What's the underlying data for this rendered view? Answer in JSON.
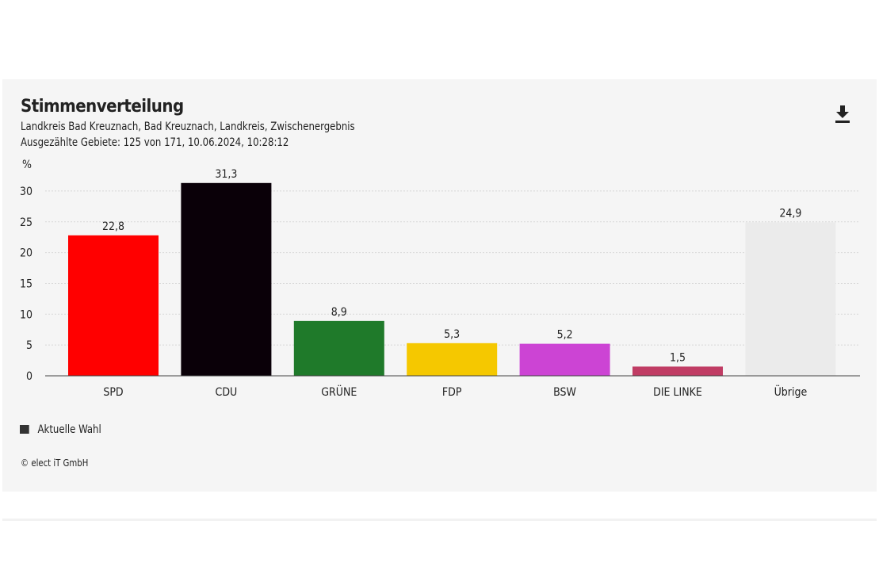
{
  "header": {
    "title": "Stimmenverteilung",
    "subtitle": "Landkreis Bad Kreuznach, Bad Kreuznach, Landkreis, Zwischenergebnis",
    "status": "Ausgezählte Gebiete: 125 von 171, 10.06.2024, 10:28:12",
    "download_icon": "download-icon"
  },
  "legend": {
    "label": "Aktuelle Wahl",
    "color": "#333333"
  },
  "footer": {
    "copyright": "© elect iT GmbH"
  },
  "chart_data": {
    "type": "bar",
    "title": "Stimmenverteilung",
    "ylabel": "%",
    "ylim": [
      0,
      30
    ],
    "yticks": [
      0,
      5,
      10,
      15,
      20,
      25,
      30
    ],
    "grid": true,
    "legend_position": "bottom-left",
    "categories": [
      "SPD",
      "CDU",
      "GRÜNE",
      "FDP",
      "BSW",
      "DIE LINKE",
      "Übrige"
    ],
    "values": [
      22.8,
      31.3,
      8.9,
      5.3,
      5.2,
      1.5,
      24.9
    ],
    "value_labels": [
      "22,8",
      "31,3",
      "8,9",
      "5,3",
      "5,2",
      "1,5",
      "24,9"
    ],
    "colors": [
      "#ff0000",
      "#0a0008",
      "#1f7a2a",
      "#f5c800",
      "#cc44d4",
      "#c03c64",
      "#ebebeb"
    ]
  }
}
